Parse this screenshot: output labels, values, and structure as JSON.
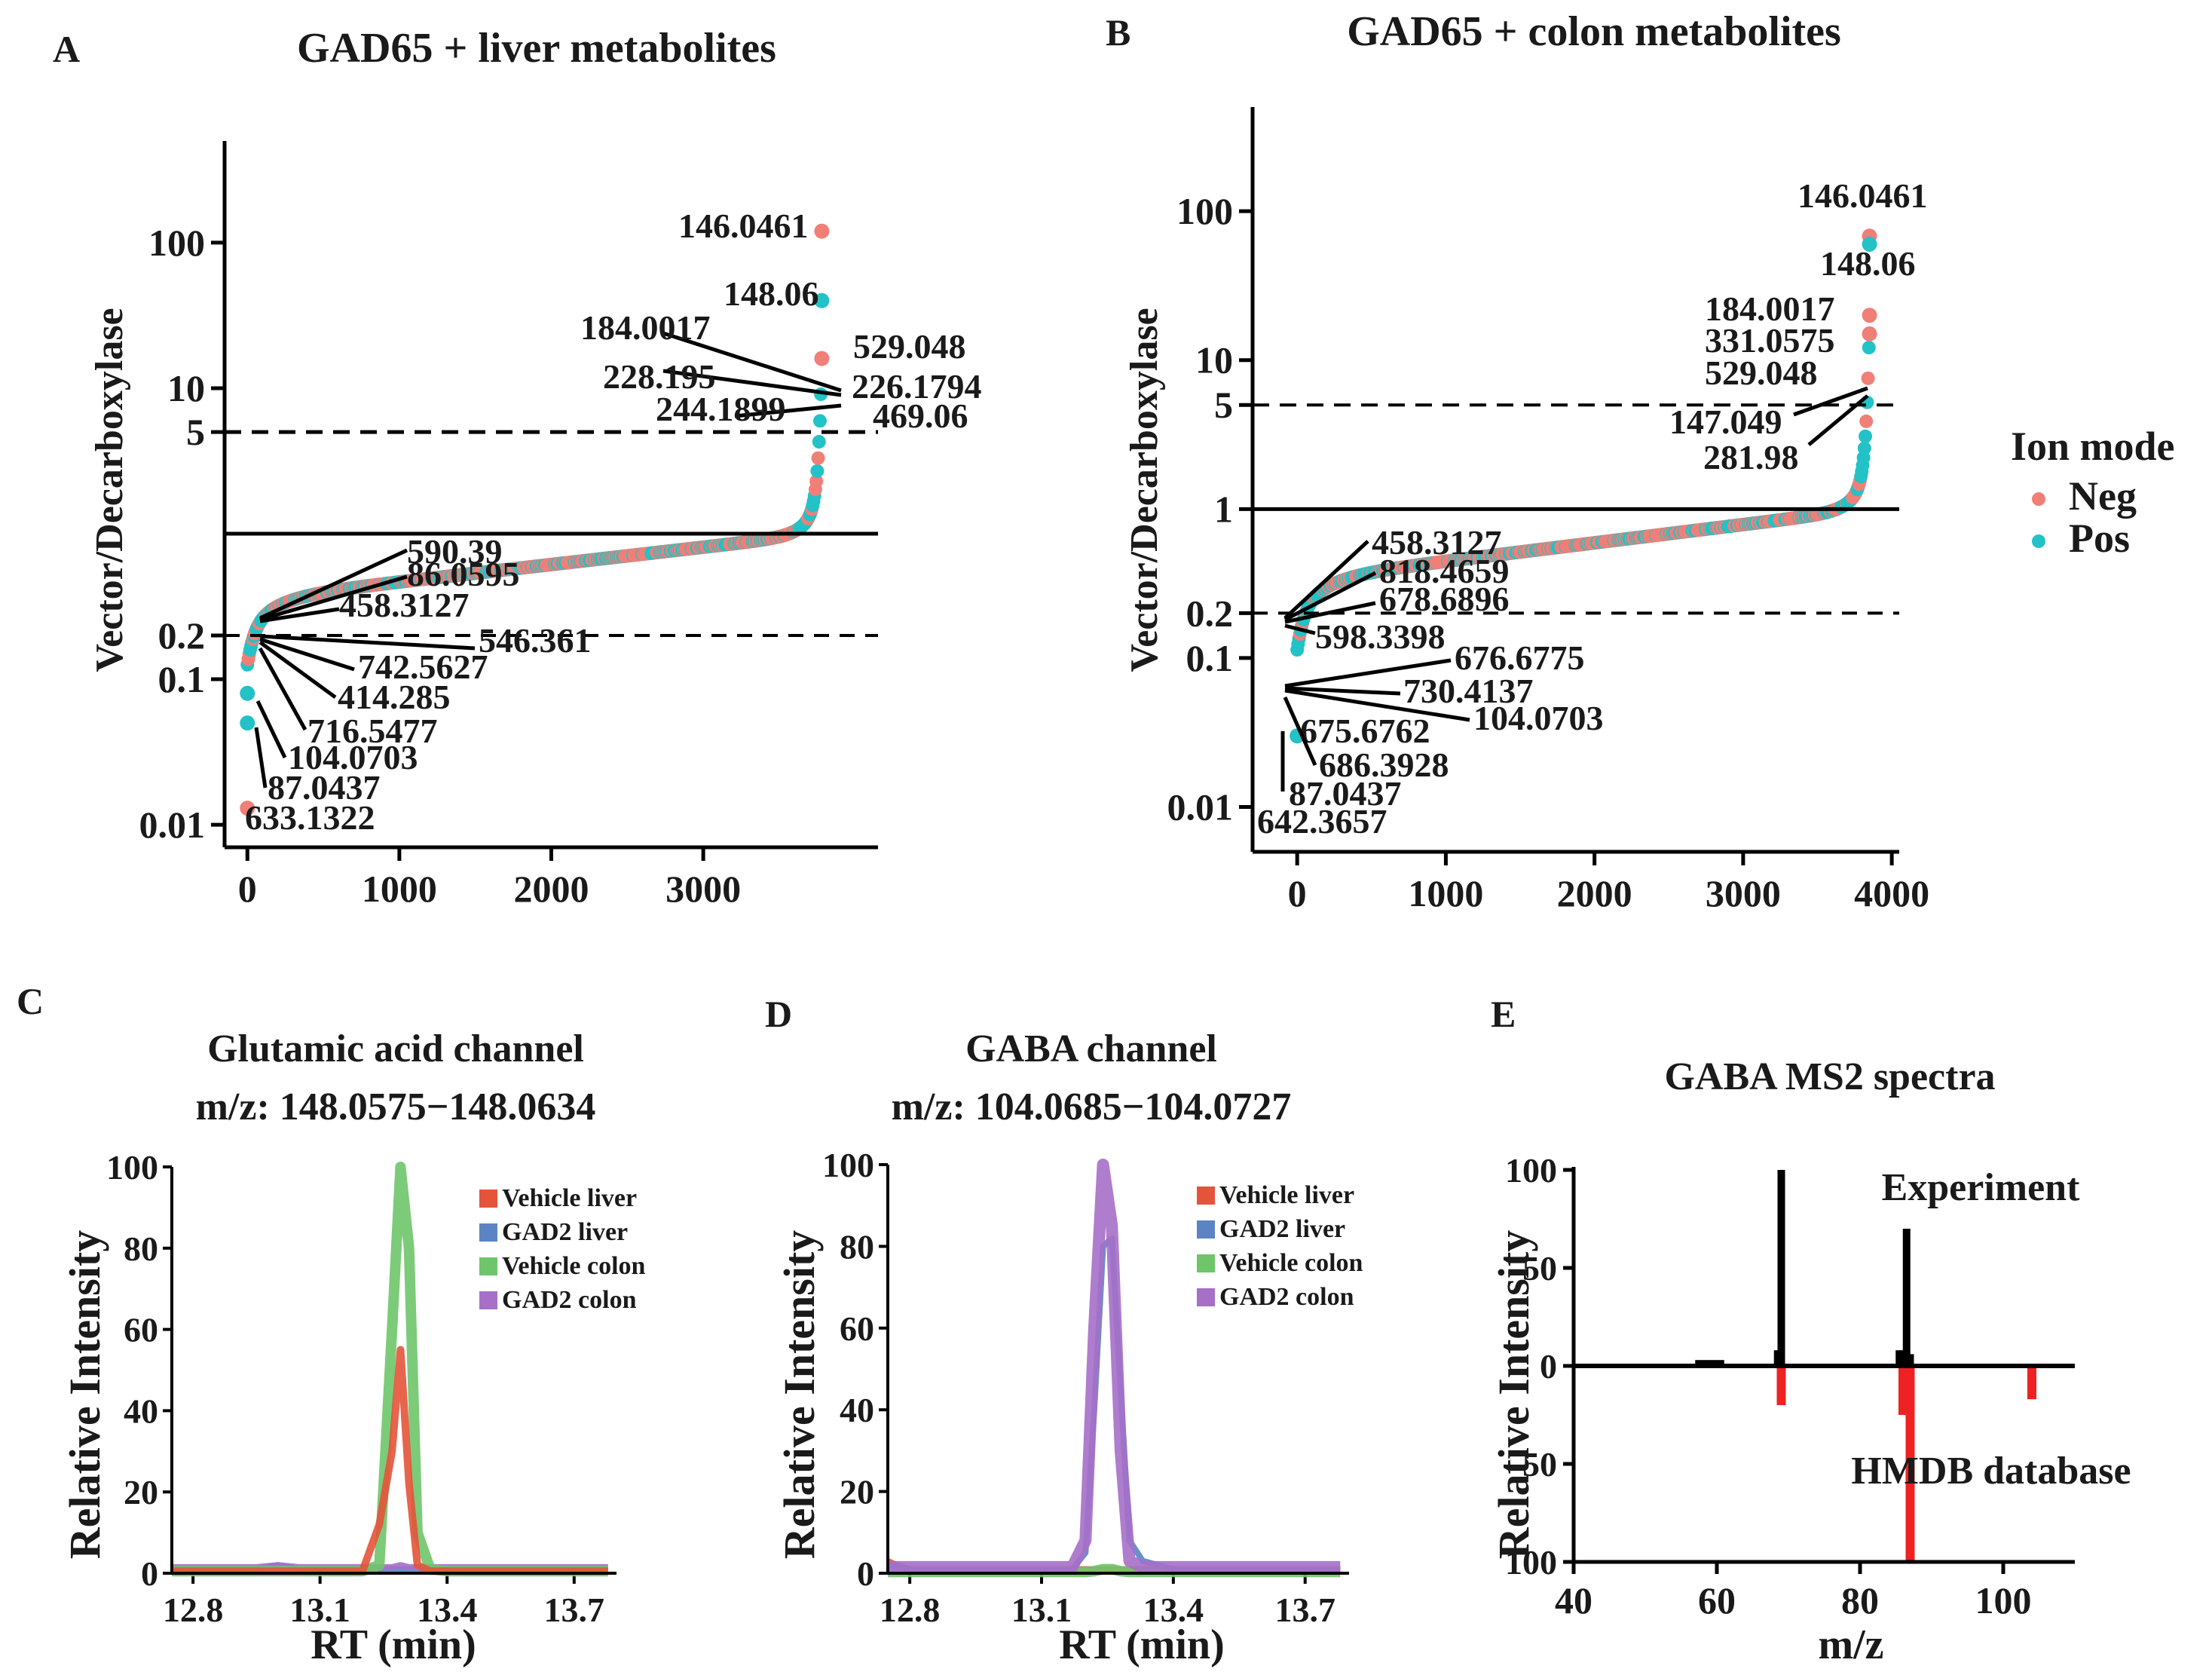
{
  "colors": {
    "neg": "#f07f78",
    "pos": "#22c2c6",
    "highlight": "#ee2b2b",
    "vehicle_liver": "#e4533a",
    "gad2_liver": "#5b84c4",
    "vehicle_colon": "#6ec56a",
    "gad2_colon": "#a66fc8",
    "hmdb": "#ee2222"
  },
  "legend": {
    "title": "Ion mode",
    "neg": "Neg",
    "pos": "Pos"
  },
  "panelA": {
    "letter": "A",
    "title": "GAD65 + liver metabolites",
    "ylabel": "Vector/Decarboxylase",
    "yticks": [
      "100",
      "10",
      "5",
      "0.2",
      "0.1",
      "0.01"
    ],
    "xticks": [
      "0",
      "1000",
      "2000",
      "3000"
    ],
    "up_labels": [
      {
        "text": "146.0461",
        "highlight": true
      },
      {
        "text": "148.06",
        "highlight": true
      },
      {
        "text": "184.0017",
        "highlight": false
      },
      {
        "text": "529.048",
        "highlight": false
      },
      {
        "text": "228.195",
        "highlight": false
      },
      {
        "text": "226.1794",
        "highlight": false
      },
      {
        "text": "244.1899",
        "highlight": false
      },
      {
        "text": "469.06",
        "highlight": false
      }
    ],
    "down_labels": [
      {
        "text": "590.39",
        "highlight": false
      },
      {
        "text": "86.0595",
        "highlight": false
      },
      {
        "text": "458.3127",
        "highlight": false
      },
      {
        "text": "546.361",
        "highlight": false
      },
      {
        "text": "742.5627",
        "highlight": false
      },
      {
        "text": "414.285",
        "highlight": false
      },
      {
        "text": "716.5477",
        "highlight": false
      },
      {
        "text": "104.0703",
        "highlight": true
      },
      {
        "text": "87.0437",
        "highlight": false
      },
      {
        "text": "633.1322",
        "highlight": false
      }
    ]
  },
  "panelB": {
    "letter": "B",
    "title": "GAD65 + colon metabolites",
    "ylabel": "Vector/Decarboxylase",
    "yticks": [
      "100",
      "10",
      "5",
      "1",
      "0.2",
      "0.1",
      "0.01"
    ],
    "xticks": [
      "0",
      "1000",
      "2000",
      "3000",
      "4000"
    ],
    "up_labels": [
      {
        "text": "146.0461",
        "highlight": true
      },
      {
        "text": "148.06",
        "highlight": true
      },
      {
        "text": "184.0017",
        "highlight": false
      },
      {
        "text": "331.0575",
        "highlight": false
      },
      {
        "text": "529.048",
        "highlight": false
      },
      {
        "text": "147.049",
        "highlight": false
      },
      {
        "text": "281.98",
        "highlight": false
      }
    ],
    "down_labels": [
      {
        "text": "458.3127",
        "highlight": false
      },
      {
        "text": "818.4659",
        "highlight": false
      },
      {
        "text": "678.6896",
        "highlight": false
      },
      {
        "text": "598.3398",
        "highlight": false
      },
      {
        "text": "676.6775",
        "highlight": false
      },
      {
        "text": "730.4137",
        "highlight": false
      },
      {
        "text": "104.0703",
        "highlight": true
      },
      {
        "text": "675.6762",
        "highlight": false
      },
      {
        "text": "686.3928",
        "highlight": false
      },
      {
        "text": "87.0437",
        "highlight": false
      },
      {
        "text": "642.3657",
        "highlight": false
      }
    ]
  },
  "panelC": {
    "letter": "C",
    "title1": "Glutamic acid channel",
    "title2": "m/z: 148.0575−148.0634",
    "ylabel": "Relative Intensity",
    "xlabel": "RT (min)",
    "xticks": [
      "12.8",
      "13.1",
      "13.4",
      "13.7"
    ],
    "yticks": [
      "100",
      "80",
      "60",
      "40",
      "20",
      "0"
    ],
    "legend": [
      "Vehicle liver",
      "GAD2 liver",
      "Vehicle colon",
      "GAD2 colon"
    ]
  },
  "panelD": {
    "letter": "D",
    "title1": "GABA channel",
    "title2": "m/z: 104.0685−104.0727",
    "ylabel": "Relative Intensity",
    "xlabel": "RT (min)",
    "xticks": [
      "12.8",
      "13.1",
      "13.4",
      "13.7"
    ],
    "yticks": [
      "100",
      "80",
      "60",
      "40",
      "20",
      "0"
    ],
    "legend": [
      "Vehicle liver",
      "GAD2 liver",
      "Vehicle colon",
      "GAD2 colon"
    ]
  },
  "panelE": {
    "letter": "E",
    "title": "GABA MS2 spectra",
    "ylabel": "Relative Intensity",
    "xlabel": "m/z",
    "xticks": [
      "40",
      "60",
      "80",
      "100"
    ],
    "yticks": [
      "100",
      "50",
      "0",
      "50",
      "100"
    ],
    "top_label": "Experiment",
    "bottom_label": "HMDB database"
  },
  "chart_data": [
    {
      "panel": "A",
      "type": "scatter",
      "title": "GAD65 + liver metabolites",
      "xlabel": "",
      "ylabel": "Vector/Decarboxylase",
      "yscale": "log",
      "xlim": [
        -150,
        4150
      ],
      "ylim": [
        0.007,
        500
      ],
      "reference_lines": [
        5,
        1,
        0.2
      ],
      "n_features": 3780,
      "series": [
        {
          "name": "Neg"
        },
        {
          "name": "Pos"
        }
      ],
      "key_points": [
        {
          "x": 3780,
          "y": 120,
          "ion": "Neg",
          "label": "146.0461"
        },
        {
          "x": 3780,
          "y": 40,
          "ion": "Pos",
          "label": "148.06"
        },
        {
          "x": 3780,
          "y": 16,
          "ion": "Neg",
          "label": "529.048"
        },
        {
          "x": 0,
          "y": 0.08,
          "ion": "Pos",
          "label": "104.0703"
        },
        {
          "x": 0,
          "y": 0.05,
          "ion": "Pos",
          "label": "87.0437"
        },
        {
          "x": 0,
          "y": 0.013,
          "ion": "Neg",
          "label": "633.1322"
        }
      ]
    },
    {
      "panel": "B",
      "type": "scatter",
      "title": "GAD65 + colon metabolites",
      "xlabel": "",
      "ylabel": "Vector/Decarboxylase",
      "yscale": "log",
      "xlim": [
        -300,
        4050
      ],
      "ylim": [
        0.005,
        500
      ],
      "reference_lines": [
        5,
        1,
        0.2
      ],
      "n_features": 3850,
      "series": [
        {
          "name": "Neg"
        },
        {
          "name": "Pos"
        }
      ],
      "key_points": [
        {
          "x": 3850,
          "y": 68,
          "ion": "Neg",
          "label": "146.0461"
        },
        {
          "x": 3850,
          "y": 60,
          "ion": "Pos",
          "label": "148.06"
        },
        {
          "x": 3850,
          "y": 20,
          "ion": "Neg",
          "label": "184.0017"
        },
        {
          "x": 3850,
          "y": 15,
          "ion": "Neg",
          "label": "331.0575"
        },
        {
          "x": 0,
          "y": 0.03,
          "ion": "Pos",
          "label": "642.3657"
        }
      ]
    },
    {
      "panel": "C",
      "type": "line",
      "title": "Glutamic acid channel m/z: 148.0575−148.0634",
      "xlabel": "RT (min)",
      "ylabel": "Relative Intensity",
      "xlim": [
        12.75,
        13.8
      ],
      "ylim": [
        0,
        100
      ],
      "x": [
        12.75,
        12.95,
        13.0,
        13.05,
        13.1,
        13.2,
        13.24,
        13.27,
        13.29,
        13.31,
        13.33,
        13.36,
        13.4,
        13.6,
        13.78
      ],
      "series": [
        {
          "name": "Vehicle liver",
          "values": [
            0.5,
            0.5,
            0.5,
            0.5,
            0.5,
            0.5,
            12,
            30,
            55,
            22,
            2,
            0.5,
            0.5,
            0.5,
            0.5
          ]
        },
        {
          "name": "GAD2 liver",
          "values": [
            1,
            1,
            2,
            1,
            1,
            1,
            1,
            1,
            1,
            1,
            1,
            1,
            1,
            1,
            1
          ]
        },
        {
          "name": "Vehicle colon",
          "values": [
            0.5,
            0.5,
            0.5,
            0.5,
            0.5,
            0.5,
            2,
            60,
            100,
            80,
            10,
            1,
            0.5,
            0.5,
            0.5
          ]
        },
        {
          "name": "GAD2 colon",
          "values": [
            1.5,
            1.5,
            2,
            1.5,
            1.5,
            1.5,
            1.5,
            1.5,
            2,
            1.5,
            1.5,
            1.5,
            1.5,
            1.5,
            1.5
          ]
        }
      ]
    },
    {
      "panel": "D",
      "type": "line",
      "title": "GABA channel m/z: 104.0685−104.0727",
      "xlabel": "RT (min)",
      "ylabel": "Relative Intensity",
      "xlim": [
        12.75,
        13.8
      ],
      "ylim": [
        0,
        100
      ],
      "x": [
        12.75,
        12.77,
        12.8,
        13.1,
        13.17,
        13.2,
        13.22,
        13.24,
        13.26,
        13.28,
        13.3,
        13.33,
        13.4,
        13.6,
        13.78
      ],
      "series": [
        {
          "name": "Vehicle liver",
          "values": [
            3,
            2,
            1,
            1,
            1,
            1,
            1,
            1,
            1,
            1,
            1,
            1,
            1,
            1,
            1
          ]
        },
        {
          "name": "GAD2 liver",
          "values": [
            2,
            1.5,
            1,
            1,
            1,
            5,
            40,
            80,
            82,
            45,
            8,
            3,
            1,
            1,
            1
          ]
        },
        {
          "name": "Vehicle colon",
          "values": [
            0.3,
            0.3,
            0.3,
            0.3,
            0.3,
            0.3,
            0.5,
            1,
            1,
            0.5,
            0.3,
            0.3,
            0.3,
            0.3,
            0.3
          ]
        },
        {
          "name": "GAD2 colon",
          "values": [
            1.5,
            1.5,
            1.5,
            1.5,
            1.5,
            8,
            60,
            100,
            85,
            30,
            3,
            1.5,
            1.5,
            1.5,
            1.5
          ]
        }
      ]
    },
    {
      "panel": "E",
      "type": "bar",
      "title": "GABA MS2 spectra",
      "xlabel": "m/z",
      "ylabel": "Relative Intensity",
      "xlim": [
        40,
        110
      ],
      "ylim": [
        -100,
        100
      ],
      "series": [
        {
          "name": "Experiment",
          "x": [
            57.5,
            58.5,
            59.5,
            60.5,
            68.5,
            69.0,
            85.5,
            86.5,
            87.0
          ],
          "values": [
            3,
            3,
            3,
            3,
            8,
            100,
            8,
            70,
            6
          ]
        },
        {
          "name": "HMDB database",
          "x": [
            69.0,
            86.0,
            87.0,
            104.0
          ],
          "values": [
            -20,
            -25,
            -100,
            -17
          ]
        }
      ]
    }
  ]
}
